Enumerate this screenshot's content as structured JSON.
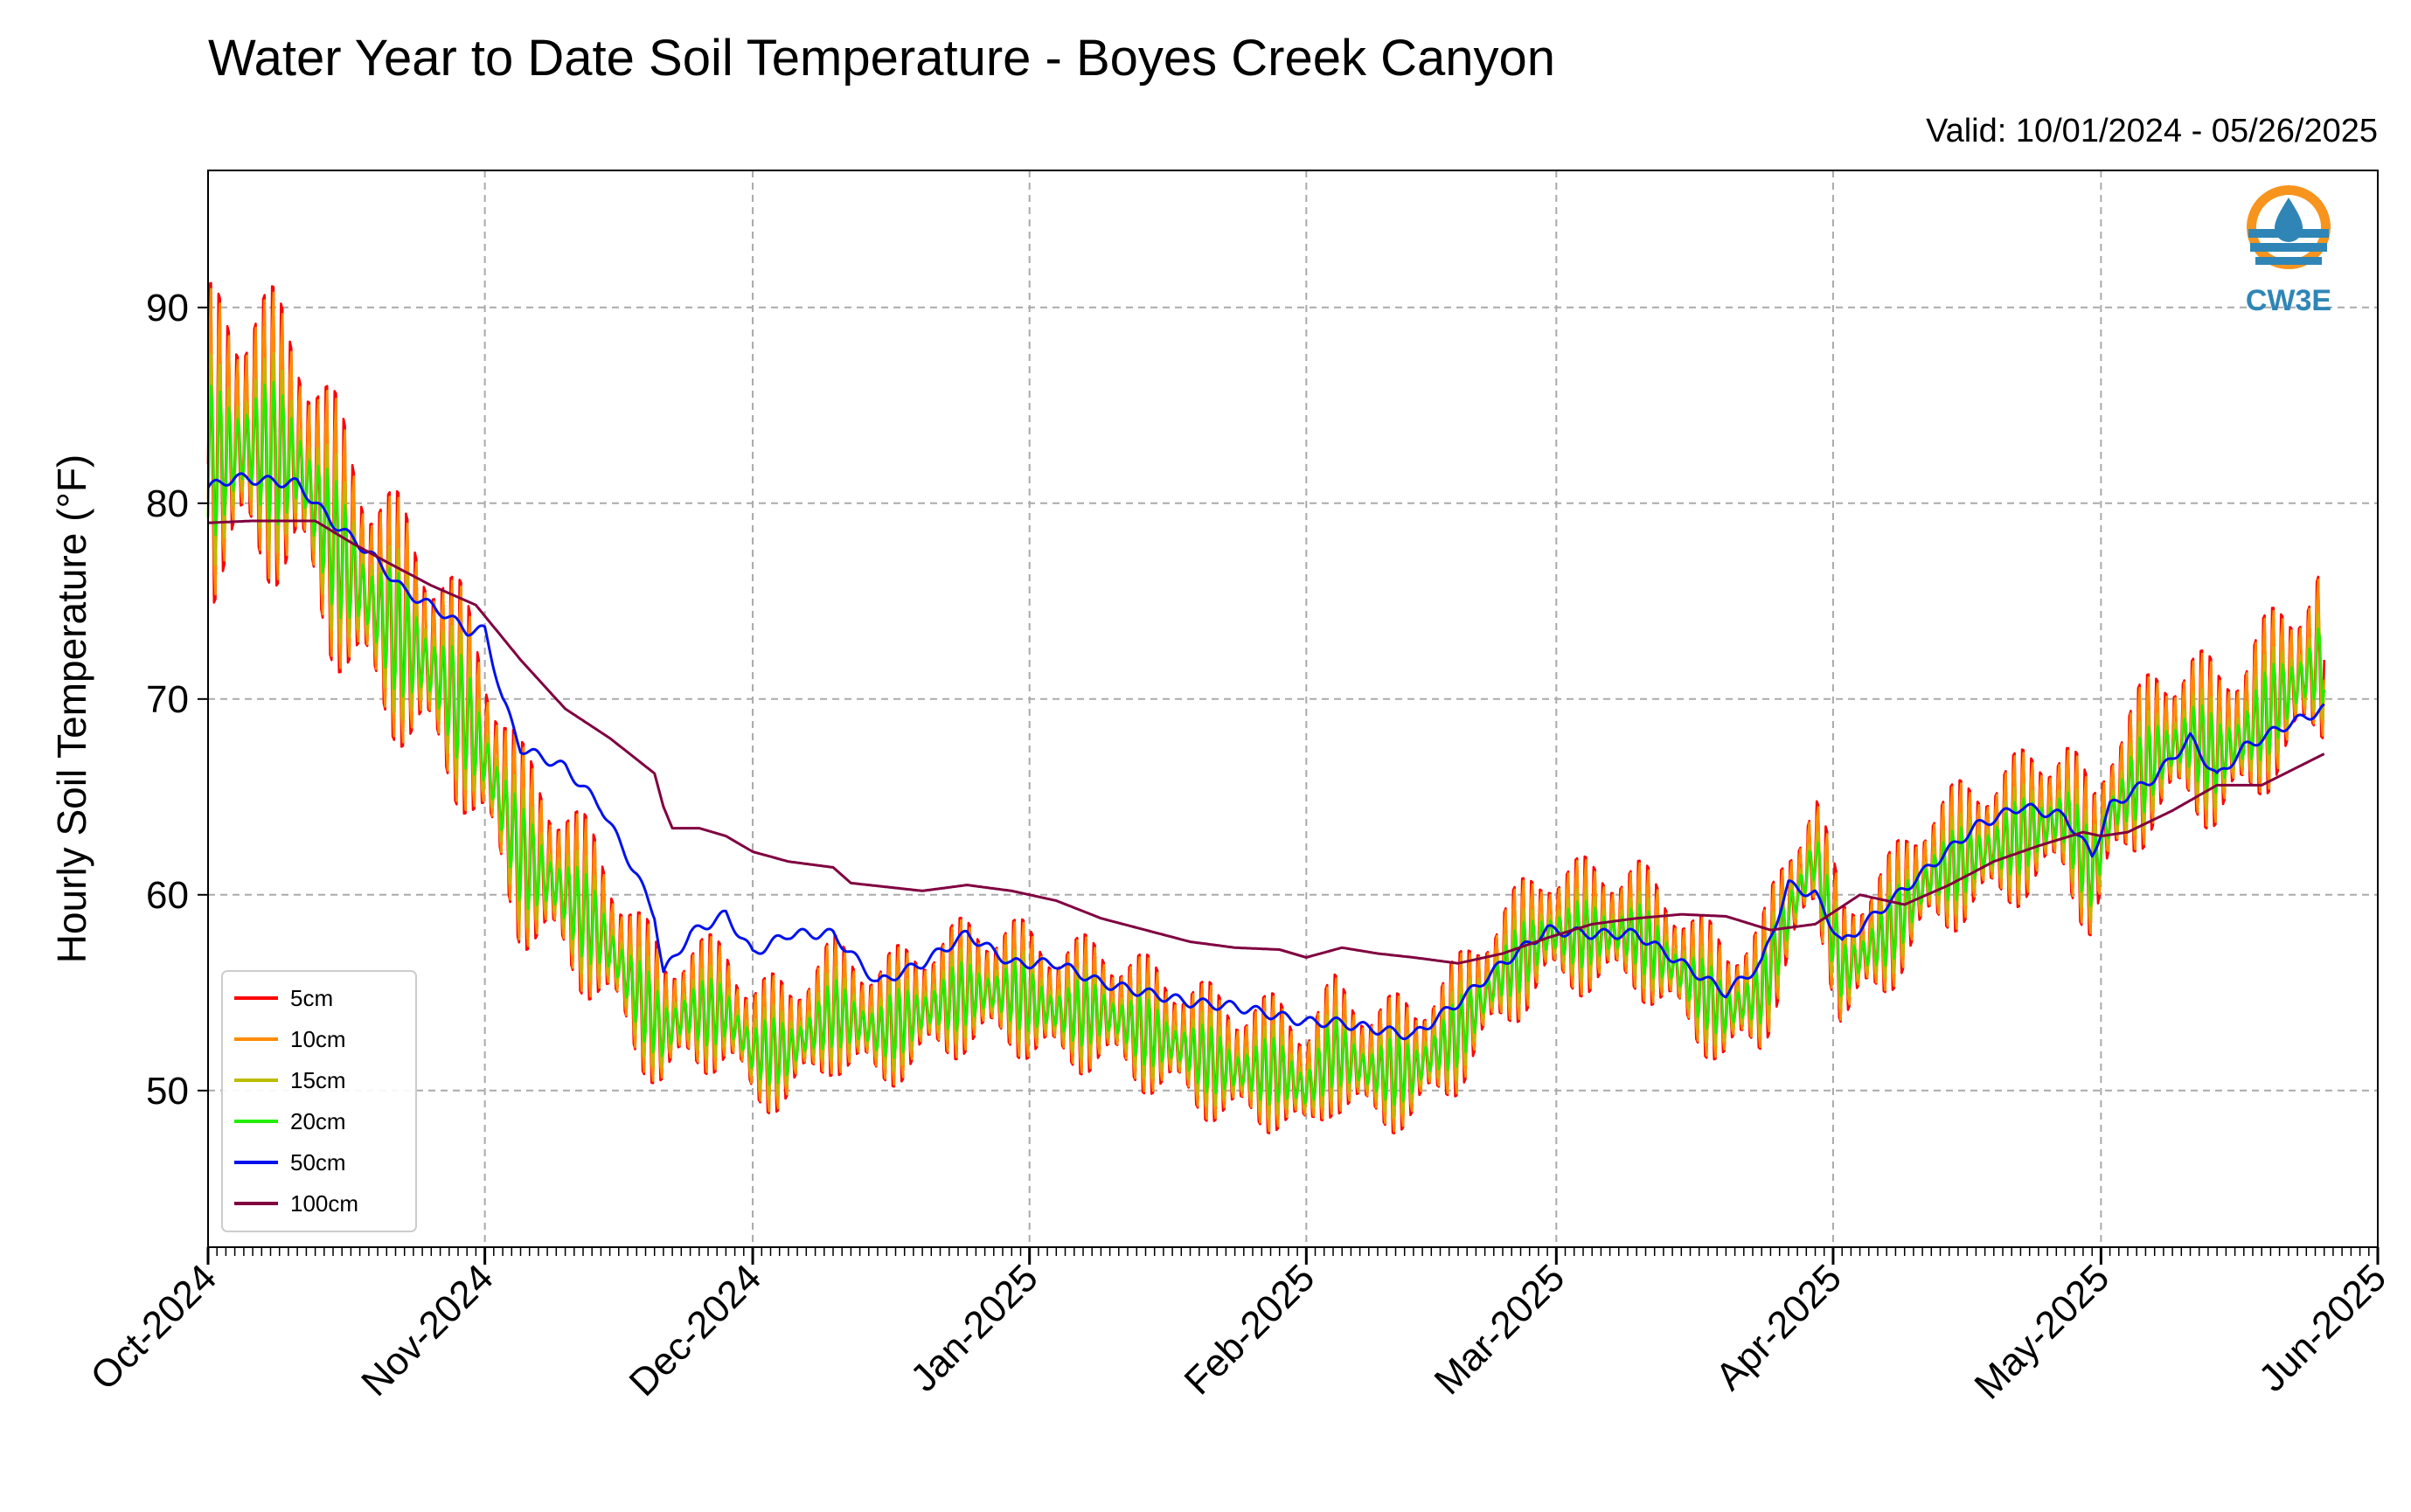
{
  "chart_data": {
    "type": "line",
    "title": "Water Year to Date Soil Temperature - Boyes Creek Canyon",
    "subtitle": "Valid: 10/01/2024 - 05/26/2025",
    "xlabel": "",
    "ylabel": "Hourly Soil Temperature ($^\\circ$F)",
    "ylabel_text": "Hourly Soil Temperature (°F)",
    "ylim": [
      42,
      97
    ],
    "yticks": [
      50,
      60,
      70,
      80,
      90
    ],
    "ytick_labels": [
      "50",
      "60",
      "70",
      "80",
      "90"
    ],
    "xlim_days": [
      0,
      243
    ],
    "xticks": [
      "Oct-2024",
      "Nov-2024",
      "Dec-2024",
      "Jan-2025",
      "Feb-2025",
      "Mar-2025",
      "Apr-2025",
      "May-2025",
      "Jun-2025"
    ],
    "xtick_days": [
      0,
      31,
      61,
      92,
      123,
      151,
      182,
      212,
      243
    ],
    "end_day": 237,
    "grid": true,
    "legend_placement": "lower-left",
    "series": [
      {
        "name": "5cm",
        "color": "#ff0000",
        "amplitude": 1.15
      },
      {
        "name": "10cm",
        "color": "#ff8c00",
        "amplitude": 1.0
      },
      {
        "name": "15cm",
        "color": "#bcbc00",
        "amplitude": 0.75
      },
      {
        "name": "20cm",
        "color": "#22ee00",
        "amplitude": 0.55
      },
      {
        "name": "50cm",
        "color": "#0011ee",
        "amplitude": 0.04
      },
      {
        "name": "100cm",
        "color": "#800040",
        "amplitude": 0
      }
    ],
    "mean_daily_temp": {
      "day": [
        0,
        5,
        10,
        14,
        18,
        22,
        26,
        29,
        31,
        35,
        40,
        44,
        48,
        51,
        54,
        58,
        61,
        65,
        70,
        75,
        80,
        85,
        90,
        95,
        100,
        105,
        110,
        115,
        120,
        123,
        126,
        130,
        135,
        140,
        145,
        150,
        155,
        160,
        165,
        170,
        174,
        177,
        180,
        183,
        188,
        193,
        198,
        203,
        208,
        211,
        213,
        218,
        222,
        225,
        228,
        232,
        237
      ],
      "value": [
        82,
        83,
        82,
        78,
        75,
        73,
        71,
        69,
        67,
        62,
        60,
        58,
        55,
        53,
        54,
        54,
        52,
        52,
        54,
        53,
        54,
        55,
        55,
        54,
        54,
        53,
        52,
        51,
        51,
        50,
        52,
        51,
        51,
        53,
        56,
        58,
        58,
        58,
        56,
        54,
        55,
        59,
        62,
        56,
        58,
        61,
        62,
        63,
        64,
        61,
        64,
        67,
        68,
        67,
        68,
        70,
        72
      ]
    },
    "series_50cm": {
      "day": [
        0,
        3,
        10,
        14,
        18,
        22,
        26,
        29,
        31,
        33,
        35,
        40,
        44,
        48,
        50,
        51,
        54,
        58,
        61,
        65,
        70,
        75,
        80,
        85,
        90,
        95,
        100,
        105,
        110,
        115,
        120,
        123,
        126,
        130,
        135,
        140,
        145,
        150,
        155,
        160,
        165,
        170,
        174,
        177,
        180,
        183,
        188,
        193,
        198,
        203,
        208,
        211,
        213,
        218,
        222,
        225,
        228,
        232,
        237
      ],
      "value": [
        80.8,
        81.3,
        81,
        79,
        77.5,
        75.5,
        74.5,
        73.5,
        73.5,
        70,
        67.5,
        66.5,
        64.5,
        61,
        59,
        56,
        58,
        59,
        57,
        58,
        58,
        55.5,
        56.5,
        58,
        56.5,
        56.5,
        55.5,
        55,
        54.5,
        54.3,
        53.8,
        53.5,
        53.5,
        53.2,
        52.8,
        54.5,
        56.5,
        58.2,
        58,
        58,
        56.5,
        55,
        56.5,
        60.5,
        60,
        57.5,
        59.5,
        61.5,
        63.5,
        64.5,
        64,
        62,
        64.5,
        66,
        68,
        66,
        67.5,
        68.5,
        69.5
      ]
    },
    "series_100cm": {
      "day": [
        0,
        5,
        12,
        16,
        20,
        25,
        30,
        35,
        40,
        45,
        50,
        51,
        52,
        55,
        58,
        61,
        65,
        70,
        72,
        80,
        85,
        90,
        95,
        100,
        105,
        110,
        115,
        120,
        123,
        127,
        131,
        135,
        140,
        145,
        150,
        155,
        160,
        165,
        170,
        175,
        180,
        185,
        190,
        195,
        200,
        205,
        210,
        212,
        215,
        220,
        225,
        230,
        237
      ],
      "value": [
        79,
        79.1,
        79.1,
        78,
        77,
        75.8,
        74.8,
        72,
        69.5,
        68,
        66.2,
        64.5,
        63.4,
        63.4,
        63,
        62.2,
        61.7,
        61.4,
        60.6,
        60.2,
        60.5,
        60.2,
        59.7,
        58.8,
        58.2,
        57.6,
        57.3,
        57.2,
        56.8,
        57.3,
        57,
        56.8,
        56.5,
        57,
        57.8,
        58.5,
        58.8,
        59,
        58.9,
        58.2,
        58.5,
        60,
        59.5,
        60.5,
        61.7,
        62.5,
        63.2,
        63,
        63.2,
        64.3,
        65.6,
        65.6,
        67.2
      ]
    }
  },
  "legend": {
    "items": [
      "5cm",
      "10cm",
      "15cm",
      "20cm",
      "50cm",
      "100cm"
    ]
  },
  "logo": {
    "text": "CW3E",
    "accent_color": "#f7941d",
    "brand_color": "#2f86b6"
  }
}
